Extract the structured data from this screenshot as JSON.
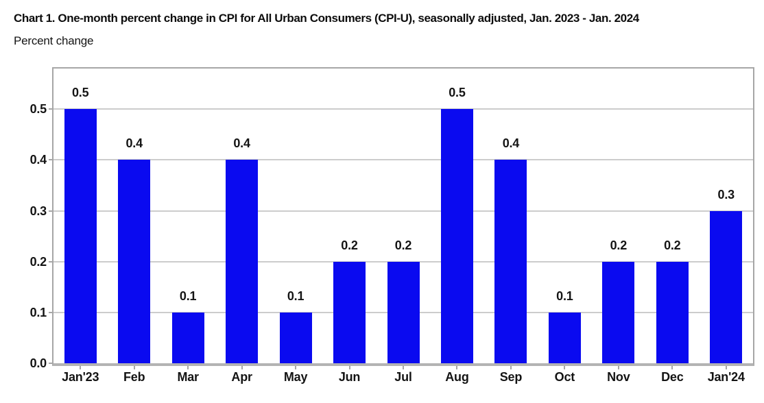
{
  "chart_data": {
    "type": "bar",
    "title": "Chart 1. One-month percent change in CPI for All Urban Consumers (CPI-U), seasonally adjusted, Jan. 2023 - Jan. 2024",
    "ylabel": "Percent change",
    "xlabel": "",
    "categories": [
      "Jan'23",
      "Feb",
      "Mar",
      "Apr",
      "May",
      "Jun",
      "Jul",
      "Aug",
      "Sep",
      "Oct",
      "Nov",
      "Dec",
      "Jan'24"
    ],
    "values": [
      0.5,
      0.4,
      0.1,
      0.4,
      0.1,
      0.2,
      0.2,
      0.5,
      0.4,
      0.1,
      0.2,
      0.2,
      0.3
    ],
    "value_labels": [
      "0.5",
      "0.4",
      "0.1",
      "0.4",
      "0.1",
      "0.2",
      "0.2",
      "0.5",
      "0.4",
      "0.1",
      "0.2",
      "0.2",
      "0.3"
    ],
    "yticks": [
      0,
      0.1,
      0.2,
      0.3,
      0.4,
      0.5
    ],
    "ytick_labels": [
      "0.0",
      "0.1",
      "0.2",
      "0.3",
      "0.4",
      "0.5"
    ],
    "ylim": [
      0,
      0.58
    ],
    "grid": true,
    "legend": false,
    "colors": {
      "bar": "#0a0af0",
      "gridline": "#cccccc",
      "axis_border": "#a6a6a6",
      "axis_tick": "#a6a6a6",
      "text": "#141414"
    }
  }
}
